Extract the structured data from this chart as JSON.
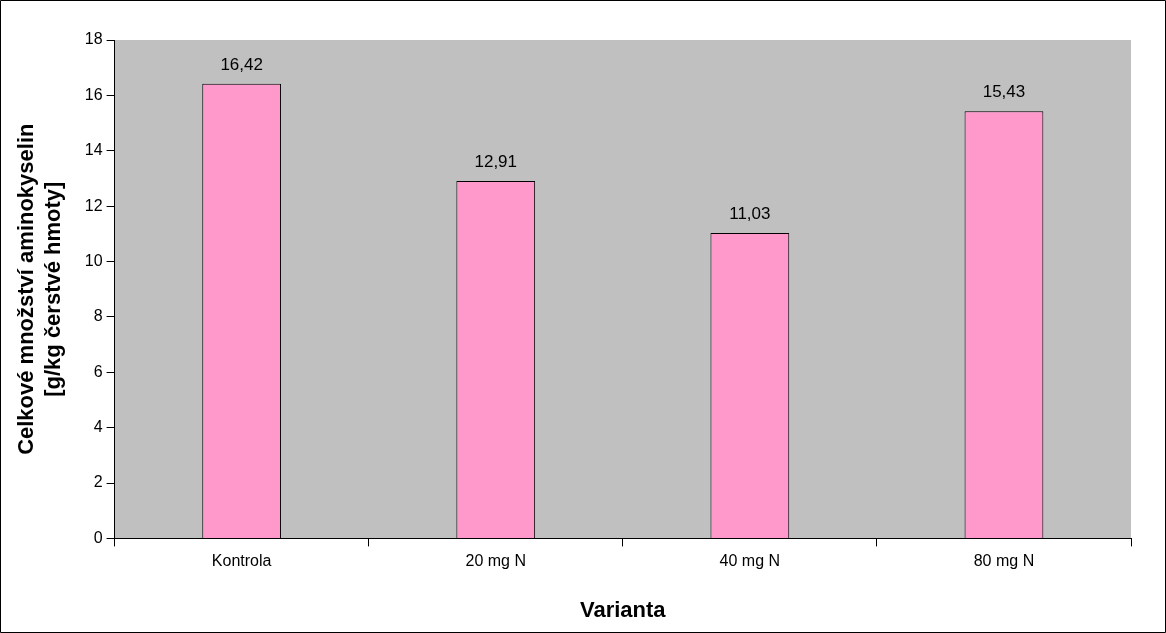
{
  "chart_data": {
    "type": "bar",
    "xlabel": "Varianta",
    "ylabel": "Celkové množství aminokyselin [g/kg čerstvé hmoty]",
    "categories": [
      "Kontrola",
      "20 mg N",
      "40 mg N",
      "80 mg N"
    ],
    "values": [
      16.42,
      12.91,
      11.03,
      15.43
    ],
    "value_labels": [
      "16,42",
      "12,91",
      "11,03",
      "15,43"
    ],
    "color": "#ff99cc",
    "ylim": [
      0,
      18
    ],
    "yticks": [
      0,
      2,
      4,
      6,
      8,
      10,
      12,
      14,
      16,
      18
    ],
    "grid": false,
    "legend": false
  }
}
